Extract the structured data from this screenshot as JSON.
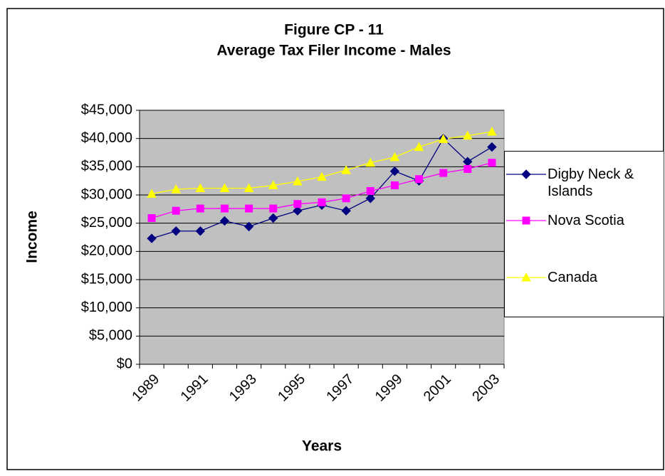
{
  "chart_data": {
    "type": "line",
    "title": "Figure CP - 11",
    "subtitle": "Average Tax Filer Income - Males",
    "x_label": "Years",
    "y_label": "Income",
    "categories": [
      "1989",
      null,
      "1991",
      null,
      "1993",
      null,
      "1995",
      null,
      "1997",
      null,
      "1999",
      null,
      "2001",
      null,
      "2003"
    ],
    "series": [
      {
        "name": "Digby Neck & Islands",
        "color": "#000080",
        "marker": "diamond",
        "values": [
          22300,
          23600,
          23600,
          25400,
          24400,
          25900,
          27200,
          28200,
          27200,
          29400,
          34200,
          32500,
          40000,
          35900,
          38500
        ]
      },
      {
        "name": "Nova Scotia",
        "color": "#ff00ff",
        "marker": "square",
        "values": [
          25900,
          27200,
          27600,
          27600,
          27600,
          27600,
          28400,
          28700,
          29400,
          30700,
          31700,
          32800,
          33900,
          34600,
          35700
        ]
      },
      {
        "name": "Canada",
        "color": "#ffff00",
        "marker": "triangle",
        "values": [
          30200,
          31000,
          31200,
          31200,
          31200,
          31700,
          32400,
          33200,
          34400,
          35700,
          36700,
          38500,
          39900,
          40500,
          41200
        ]
      }
    ],
    "ylim": [
      0,
      45000
    ],
    "yticks": [
      {
        "value": 0,
        "label": "$0"
      },
      {
        "value": 5000,
        "label": "$5,000"
      },
      {
        "value": 10000,
        "label": "$10,000"
      },
      {
        "value": 15000,
        "label": "$15,000"
      },
      {
        "value": 20000,
        "label": "$20,000"
      },
      {
        "value": 25000,
        "label": "$25,000"
      },
      {
        "value": 30000,
        "label": "$30,000"
      },
      {
        "value": 35000,
        "label": "$35,000"
      },
      {
        "value": 40000,
        "label": "$40,000"
      },
      {
        "value": 45000,
        "label": "$45,000"
      }
    ],
    "grid": true,
    "plot_background": "#c0c0c0",
    "legend": "right"
  }
}
